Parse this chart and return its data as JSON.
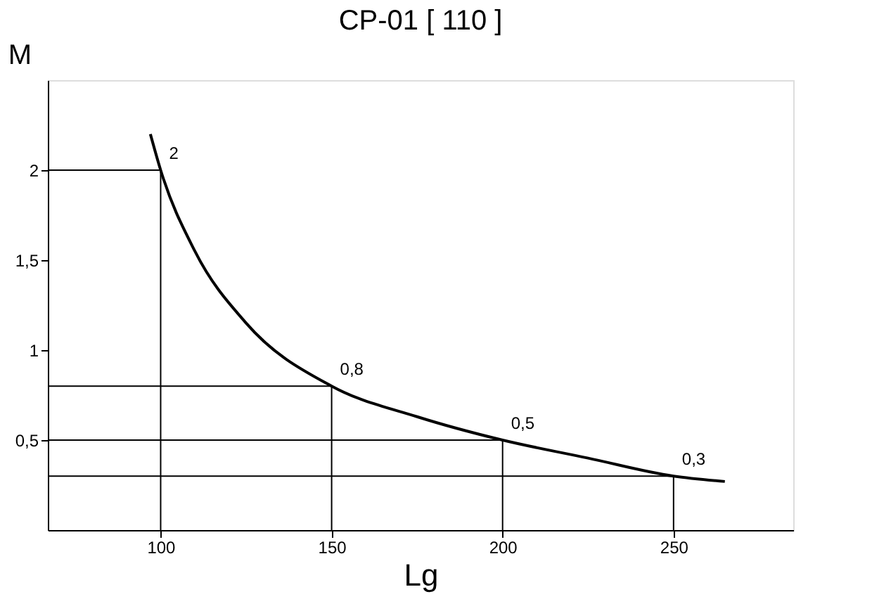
{
  "chart_data": {
    "type": "line",
    "title": "CP-01 [ 110 ]",
    "xlabel": "Lg",
    "ylabel": "M",
    "x": [
      97,
      100,
      110,
      125,
      150,
      175,
      200,
      225,
      250,
      265
    ],
    "series": [
      {
        "color": "#000000",
        "values": [
          2.2,
          2.0,
          1.55,
          1.15,
          0.8,
          0.63,
          0.5,
          0.4,
          0.3,
          0.27
        ],
        "value_labels": [
          null,
          "2",
          null,
          null,
          "0,8",
          null,
          "0,5",
          null,
          "0,3",
          null
        ]
      }
    ],
    "xlim": [
      67,
      285
    ],
    "ylim": [
      0,
      2.5
    ],
    "xticks": [
      100,
      150,
      200,
      250
    ],
    "yticks": [
      {
        "value": 0.5,
        "label": "0,5"
      },
      1,
      {
        "value": 1.5,
        "label": "1,5"
      },
      2
    ],
    "ref_lines": [
      {
        "axis": "y",
        "value": 2.0
      },
      {
        "axis": "y",
        "value": 0.8
      },
      {
        "axis": "y",
        "value": 0.5
      },
      {
        "axis": "y",
        "value": 0.3
      },
      {
        "axis": "x",
        "value": 100
      },
      {
        "axis": "x",
        "value": 150
      },
      {
        "axis": "x",
        "value": 200
      },
      {
        "axis": "x",
        "value": 250
      }
    ],
    "grid": false,
    "marker": "none",
    "line_style": "solid"
  }
}
